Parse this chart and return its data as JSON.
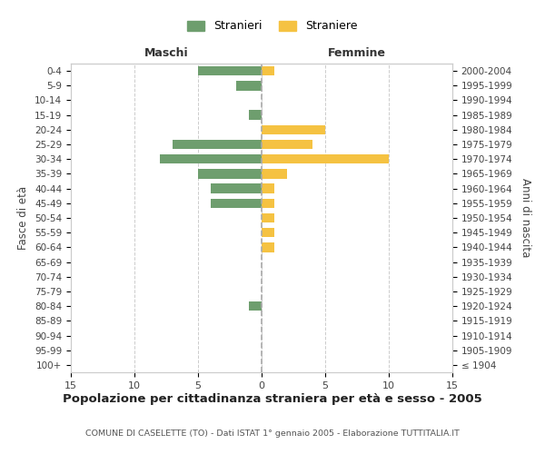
{
  "age_groups": [
    "100+",
    "95-99",
    "90-94",
    "85-89",
    "80-84",
    "75-79",
    "70-74",
    "65-69",
    "60-64",
    "55-59",
    "50-54",
    "45-49",
    "40-44",
    "35-39",
    "30-34",
    "25-29",
    "20-24",
    "15-19",
    "10-14",
    "5-9",
    "0-4"
  ],
  "birth_years": [
    "≤ 1904",
    "1905-1909",
    "1910-1914",
    "1915-1919",
    "1920-1924",
    "1925-1929",
    "1930-1934",
    "1935-1939",
    "1940-1944",
    "1945-1949",
    "1950-1954",
    "1955-1959",
    "1960-1964",
    "1965-1969",
    "1970-1974",
    "1975-1979",
    "1980-1984",
    "1985-1989",
    "1990-1994",
    "1995-1999",
    "2000-2004"
  ],
  "males": [
    0,
    0,
    0,
    0,
    1,
    0,
    0,
    0,
    0,
    0,
    0,
    4,
    4,
    5,
    8,
    7,
    0,
    1,
    0,
    2,
    5
  ],
  "females": [
    0,
    0,
    0,
    0,
    0,
    0,
    0,
    0,
    1,
    1,
    1,
    1,
    1,
    2,
    10,
    4,
    5,
    0,
    0,
    0,
    1
  ],
  "male_color": "#6e9e6e",
  "female_color": "#f5c242",
  "title": "Popolazione per cittadinanza straniera per età e sesso - 2005",
  "subtitle": "COMUNE DI CASELETTE (TO) - Dati ISTAT 1° gennaio 2005 - Elaborazione TUTTITALIA.IT",
  "ylabel_left": "Fasce di età",
  "ylabel_right": "Anni di nascita",
  "xlabel_left": "Maschi",
  "xlabel_top_right": "Femmine",
  "legend_male": "Stranieri",
  "legend_female": "Straniere",
  "xlim": 15,
  "background_color": "#ffffff",
  "grid_color": "#cccccc"
}
